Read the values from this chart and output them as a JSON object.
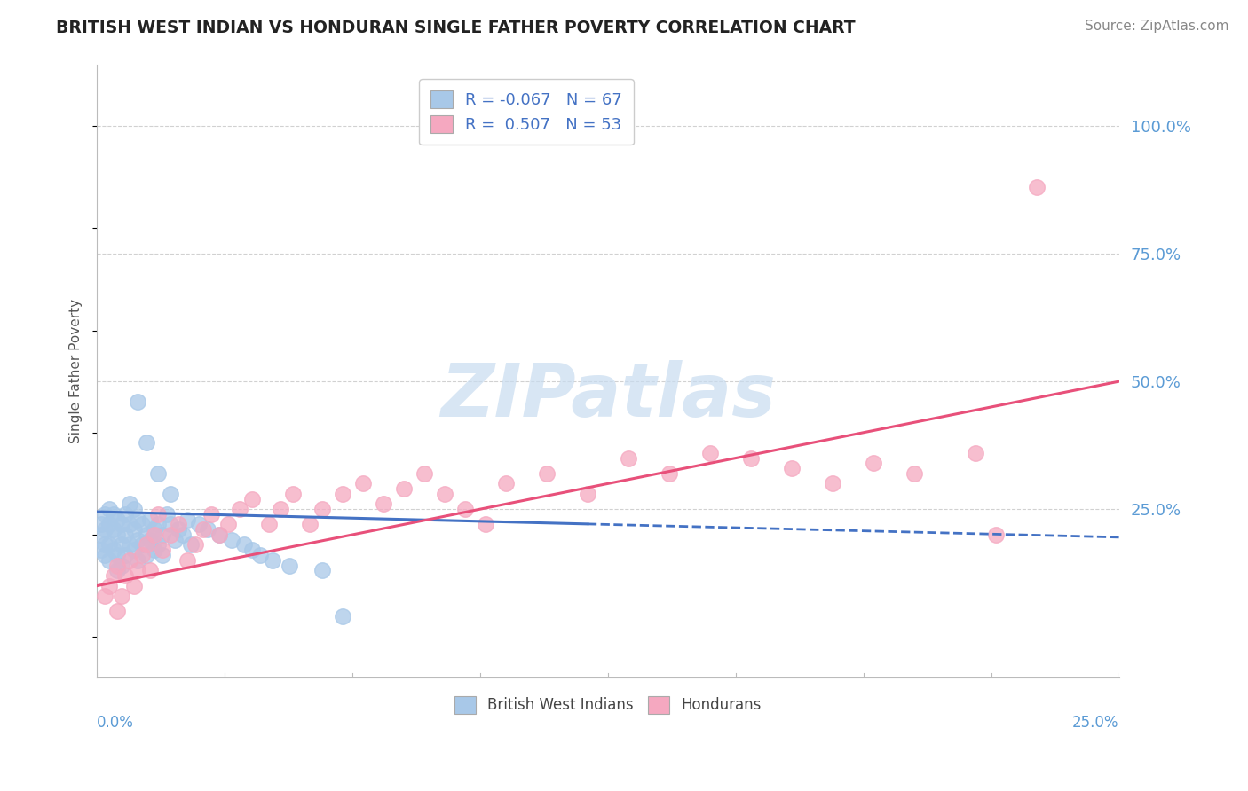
{
  "title": "BRITISH WEST INDIAN VS HONDURAN SINGLE FATHER POVERTY CORRELATION CHART",
  "source": "Source: ZipAtlas.com",
  "ylabel": "Single Father Poverty",
  "legend_labels": [
    "British West Indians",
    "Hondurans"
  ],
  "legend_r": [
    -0.067,
    0.507
  ],
  "legend_n": [
    67,
    53
  ],
  "ytick_labels": [
    "100.0%",
    "75.0%",
    "50.0%",
    "25.0%"
  ],
  "ytick_values": [
    1.0,
    0.75,
    0.5,
    0.25
  ],
  "xlim": [
    0.0,
    0.25
  ],
  "ylim": [
    -0.08,
    1.12
  ],
  "blue_color": "#A8C8E8",
  "pink_color": "#F5A8C0",
  "blue_line_color": "#4472C4",
  "pink_line_color": "#E8507A",
  "watermark_color": "#C8DCF0",
  "background_color": "#FFFFFF",
  "grid_color": "#CCCCCC",
  "blue_trend_x0": 0.0,
  "blue_trend_x1": 0.25,
  "blue_trend_y0": 0.245,
  "blue_trend_y1": 0.195,
  "pink_trend_x0": 0.0,
  "pink_trend_x1": 0.25,
  "pink_trend_y0": 0.1,
  "pink_trend_y1": 0.5,
  "blue_x": [
    0.001,
    0.001,
    0.001,
    0.002,
    0.002,
    0.002,
    0.002,
    0.003,
    0.003,
    0.003,
    0.003,
    0.004,
    0.004,
    0.004,
    0.005,
    0.005,
    0.005,
    0.005,
    0.006,
    0.006,
    0.006,
    0.007,
    0.007,
    0.007,
    0.008,
    0.008,
    0.008,
    0.009,
    0.009,
    0.009,
    0.01,
    0.01,
    0.01,
    0.011,
    0.011,
    0.012,
    0.012,
    0.013,
    0.013,
    0.014,
    0.014,
    0.015,
    0.015,
    0.016,
    0.016,
    0.017,
    0.018,
    0.019,
    0.02,
    0.021,
    0.022,
    0.023,
    0.025,
    0.027,
    0.03,
    0.033,
    0.036,
    0.038,
    0.04,
    0.043,
    0.047,
    0.055,
    0.01,
    0.012,
    0.015,
    0.018,
    0.06
  ],
  "blue_y": [
    0.17,
    0.2,
    0.22,
    0.16,
    0.18,
    0.21,
    0.24,
    0.15,
    0.18,
    0.22,
    0.25,
    0.17,
    0.21,
    0.24,
    0.13,
    0.16,
    0.2,
    0.23,
    0.14,
    0.18,
    0.22,
    0.16,
    0.2,
    0.24,
    0.18,
    0.22,
    0.26,
    0.17,
    0.21,
    0.25,
    0.15,
    0.19,
    0.23,
    0.18,
    0.22,
    0.16,
    0.2,
    0.19,
    0.23,
    0.17,
    0.21,
    0.18,
    0.22,
    0.16,
    0.2,
    0.24,
    0.22,
    0.19,
    0.21,
    0.2,
    0.23,
    0.18,
    0.22,
    0.21,
    0.2,
    0.19,
    0.18,
    0.17,
    0.16,
    0.15,
    0.14,
    0.13,
    0.46,
    0.38,
    0.32,
    0.28,
    0.04
  ],
  "pink_x": [
    0.002,
    0.003,
    0.004,
    0.005,
    0.005,
    0.006,
    0.007,
    0.008,
    0.009,
    0.01,
    0.011,
    0.012,
    0.013,
    0.014,
    0.015,
    0.016,
    0.018,
    0.02,
    0.022,
    0.024,
    0.026,
    0.028,
    0.03,
    0.032,
    0.035,
    0.038,
    0.042,
    0.045,
    0.048,
    0.052,
    0.055,
    0.06,
    0.065,
    0.07,
    0.075,
    0.08,
    0.085,
    0.09,
    0.095,
    0.1,
    0.11,
    0.12,
    0.13,
    0.14,
    0.15,
    0.16,
    0.17,
    0.18,
    0.19,
    0.2,
    0.215,
    0.22,
    0.23
  ],
  "pink_y": [
    0.08,
    0.1,
    0.12,
    0.05,
    0.14,
    0.08,
    0.12,
    0.15,
    0.1,
    0.13,
    0.16,
    0.18,
    0.13,
    0.2,
    0.24,
    0.17,
    0.2,
    0.22,
    0.15,
    0.18,
    0.21,
    0.24,
    0.2,
    0.22,
    0.25,
    0.27,
    0.22,
    0.25,
    0.28,
    0.22,
    0.25,
    0.28,
    0.3,
    0.26,
    0.29,
    0.32,
    0.28,
    0.25,
    0.22,
    0.3,
    0.32,
    0.28,
    0.35,
    0.32,
    0.36,
    0.35,
    0.33,
    0.3,
    0.34,
    0.32,
    0.36,
    0.2,
    0.88
  ]
}
